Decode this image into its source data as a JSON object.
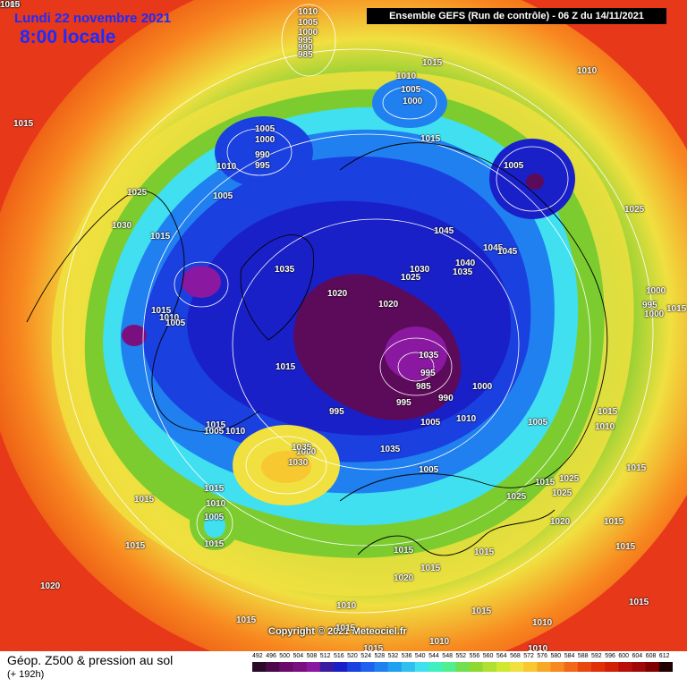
{
  "header": {
    "date_line": "Lundi 22 novembre 2021",
    "local_time": "8:00 locale",
    "run_info": "Ensemble GEFS  (Run de contrôle)  -  06 Z du 14/11/2021"
  },
  "map": {
    "copyright": "Copyright © 2021 Meteociel.fr",
    "pressure_labels": [
      "1010",
      "1005",
      "1000",
      "995",
      "990",
      "985",
      "1015",
      "1010",
      "1005",
      "1000",
      "1015",
      "1010",
      "1015",
      "1005",
      "1000",
      "990",
      "995",
      "1010",
      "1025",
      "1005",
      "1030",
      "1015",
      "1005",
      "1025",
      "1045",
      "1045",
      "1045",
      "1035",
      "1040",
      "1035",
      "1030",
      "1025",
      "1020",
      "1020",
      "1015",
      "1010",
      "1005",
      "1015",
      "1035",
      "995",
      "985",
      "990",
      "1000",
      "995",
      "995",
      "1005",
      "1010",
      "1005",
      "1000",
      "1035",
      "1030",
      "1035",
      "1015",
      "1005",
      "1010",
      "1015",
      "1005",
      "1000",
      "1000",
      "995",
      "1015",
      "1010",
      "1015",
      "1015",
      "1015",
      "1010",
      "1005",
      "1015",
      "1015",
      "1025",
      "1025",
      "1025",
      "1020",
      "1015",
      "1020",
      "1015",
      "1015",
      "1015",
      "1015",
      "1020",
      "1015",
      "1015",
      "1010",
      "1015",
      "1015",
      "1015",
      "1010",
      "1015",
      "1010",
      "1010",
      "1000",
      "1015"
    ],
    "colors": {
      "low_core": "#5c0a5a",
      "deep_blue": "#1a20c8",
      "cyan": "#40e0f0",
      "green": "#7ccc30",
      "yellow": "#f0e040",
      "orange": "#f07010",
      "red": "#e02808"
    }
  },
  "footer": {
    "product_title": "Géop. Z500 & pression au sol",
    "forecast_lead": "(+ 192h)",
    "scale_ticks": [
      "492",
      "496",
      "500",
      "504",
      "508",
      "512",
      "516",
      "520",
      "524",
      "528",
      "532",
      "536",
      "540",
      "544",
      "548",
      "552",
      "556",
      "560",
      "564",
      "568",
      "572",
      "576",
      "580",
      "584",
      "588",
      "592",
      "596",
      "600",
      "604",
      "608",
      "612"
    ],
    "scale_colors": [
      "#2a0a2a",
      "#4a0a4a",
      "#6a0a6a",
      "#7a1080",
      "#8a18a0",
      "#3a1ca0",
      "#1a20c8",
      "#1a40e0",
      "#1e60f0",
      "#2080f0",
      "#20a0f0",
      "#30c0f0",
      "#40e0f0",
      "#40f0c0",
      "#50f090",
      "#70e050",
      "#90d830",
      "#b0e030",
      "#d0e830",
      "#f0e040",
      "#f8c830",
      "#f8a828",
      "#f88820",
      "#f06818",
      "#e84810",
      "#e03008",
      "#d02008",
      "#b81008",
      "#a00808",
      "#800000",
      "#200000"
    ]
  }
}
